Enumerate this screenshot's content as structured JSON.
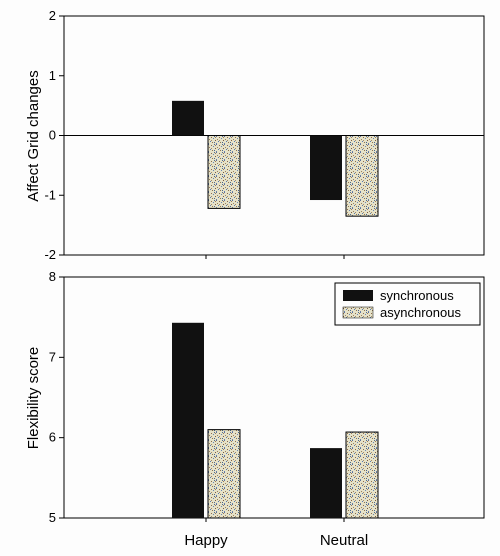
{
  "colors": {
    "synchronous": "#111111",
    "asynchronous_base": "#e8e4cc",
    "frame": "#000000",
    "background": "#fdfdfd"
  },
  "chart_data": [
    {
      "type": "bar",
      "categories": [
        "Happy",
        "Neutral"
      ],
      "series": [
        {
          "name": "synchronous",
          "values": [
            0.58,
            -1.08
          ]
        },
        {
          "name": "asynchronous",
          "values": [
            -1.22,
            -1.35
          ]
        }
      ],
      "ylabel": "Affect Grid changes",
      "ylim": [
        -2,
        2
      ],
      "yticks": [
        2,
        1,
        0,
        -1,
        -2
      ],
      "zero_line": true,
      "grid": false,
      "legend": null
    },
    {
      "type": "bar",
      "categories": [
        "Happy",
        "Neutral"
      ],
      "series": [
        {
          "name": "synchronous",
          "values": [
            7.43,
            5.87
          ]
        },
        {
          "name": "asynchronous",
          "values": [
            6.1,
            6.07
          ]
        }
      ],
      "ylabel": "Flexibility score",
      "ylim": [
        5,
        8
      ],
      "yticks": [
        8,
        7,
        6,
        5
      ],
      "grid": false,
      "legend": {
        "placement": "top-right",
        "entries": [
          "synchronous",
          "asynchronous"
        ]
      }
    }
  ]
}
